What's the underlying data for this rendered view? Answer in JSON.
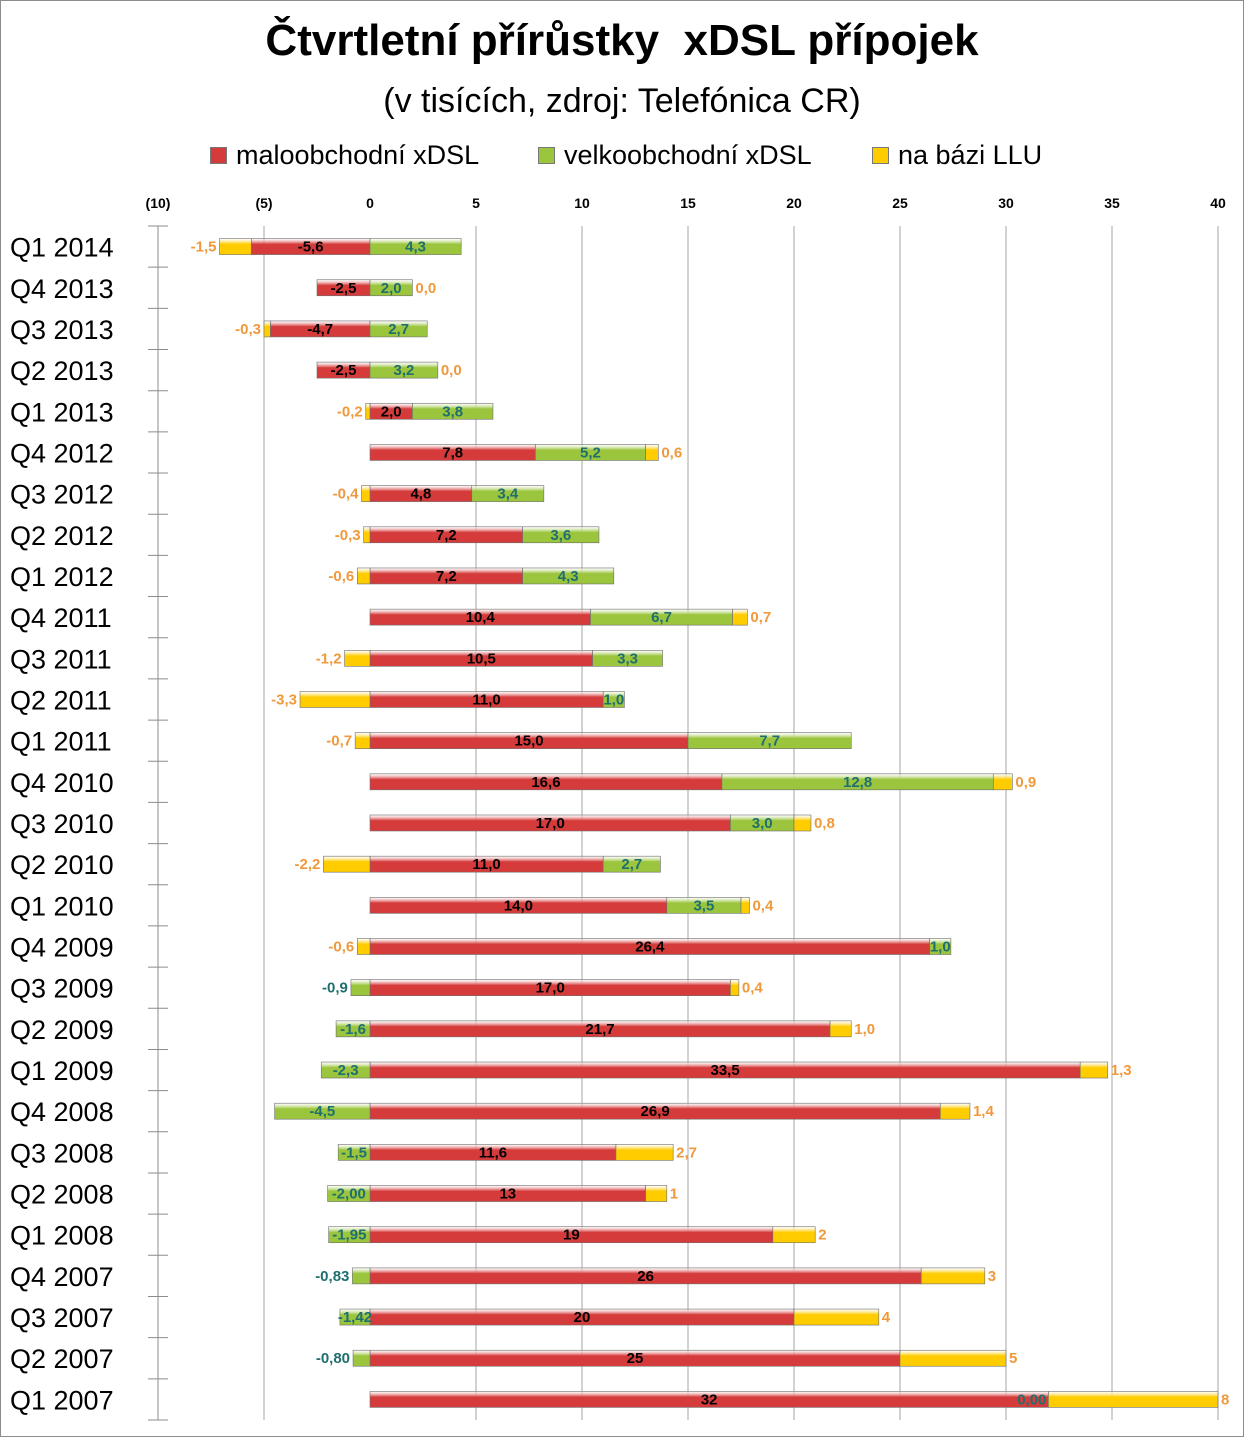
{
  "chart_data": {
    "type": "bar",
    "orientation": "horizontal",
    "stacked": true,
    "title": "Čtvrtletní přírůstky  xDSL přípojek",
    "subtitle": "(v tisících, zdroj: Telefónica CR)",
    "xlim": [
      -10,
      40
    ],
    "x_ticks": [
      {
        "value": -10,
        "label": "(10)"
      },
      {
        "value": -5,
        "label": "(5)"
      },
      {
        "value": 0,
        "label": "0"
      },
      {
        "value": 5,
        "label": "5"
      },
      {
        "value": 10,
        "label": "10"
      },
      {
        "value": 15,
        "label": "15"
      },
      {
        "value": 20,
        "label": "20"
      },
      {
        "value": 25,
        "label": "25"
      },
      {
        "value": 30,
        "label": "30"
      },
      {
        "value": 35,
        "label": "35"
      },
      {
        "value": 40,
        "label": "40"
      }
    ],
    "grid": true,
    "legend_position": "top",
    "categories": [
      "Q1 2014",
      "Q4 2013",
      "Q3 2013",
      "Q2 2013",
      "Q1 2013",
      "Q4 2012",
      "Q3 2012",
      "Q2 2012",
      "Q1 2012",
      "Q4 2011",
      "Q3 2011",
      "Q2 2011",
      "Q1 2011",
      "Q4 2010",
      "Q3 2010",
      "Q2 2010",
      "Q1 2010",
      "Q4 2009",
      "Q3 2009",
      "Q2 2009",
      "Q1 2009",
      "Q4 2008",
      "Q3 2008",
      "Q2 2008",
      "Q1 2008",
      "Q4 2007",
      "Q3 2007",
      "Q2 2007",
      "Q1 2007"
    ],
    "series": [
      {
        "name": "maloobchodní xDSL",
        "color": "#d63b3b",
        "label_color": "#000000",
        "values": [
          -5.6,
          -2.5,
          -4.7,
          -2.5,
          2.0,
          7.8,
          4.8,
          7.2,
          7.2,
          10.4,
          10.5,
          11.0,
          15.0,
          16.6,
          17.0,
          11.0,
          14.0,
          26.4,
          17.0,
          21.7,
          33.5,
          26.9,
          11.6,
          13,
          19,
          26,
          20,
          25,
          32
        ],
        "labels": [
          "-5,6",
          "-2,5",
          "-4,7",
          "-2,5",
          "2,0",
          "7,8",
          "4,8",
          "7,2",
          "7,2",
          "10,4",
          "10,5",
          "11,0",
          "15,0",
          "16,6",
          "17,0",
          "11,0",
          "14,0",
          "26,4",
          "17,0",
          "21,7",
          "33,5",
          "26,9",
          "11,6",
          "13",
          "19",
          "26",
          "20",
          "25",
          "32"
        ]
      },
      {
        "name": "velkoobchodní xDSL",
        "color": "#9bc53d",
        "label_color": "#1f6f6f",
        "values": [
          4.3,
          2.0,
          2.7,
          3.2,
          3.8,
          5.2,
          3.4,
          3.6,
          4.3,
          6.7,
          3.3,
          1.0,
          7.7,
          12.8,
          3.0,
          2.7,
          3.5,
          1.0,
          -0.9,
          -1.6,
          -2.3,
          -4.5,
          -1.5,
          -2.0,
          -1.95,
          -0.83,
          -1.42,
          -0.8,
          0.0
        ],
        "labels": [
          "4,3",
          "2,0",
          "2,7",
          "3,2",
          "3,8",
          "5,2",
          "3,4",
          "3,6",
          "4,3",
          "6,7",
          "3,3",
          "1,0",
          "7,7",
          "12,8",
          "3,0",
          "2,7",
          "3,5",
          "1,0",
          "-0,9",
          "-1,6",
          "-2,3",
          "-4,5",
          "-1,5",
          "-2,00",
          "-1,95",
          "-0,83",
          "-1,42",
          "-0,80",
          "0,00"
        ]
      },
      {
        "name": "na bázi LLU",
        "color": "#ffcc00",
        "label_color": "#f0993c",
        "values": [
          -1.5,
          0.0,
          -0.3,
          0.0,
          -0.2,
          0.6,
          -0.4,
          -0.3,
          -0.6,
          0.7,
          -1.2,
          -3.3,
          -0.7,
          0.9,
          0.8,
          -2.2,
          0.4,
          -0.6,
          0.4,
          1.0,
          1.3,
          1.4,
          2.7,
          1,
          2,
          3,
          4,
          5,
          8
        ],
        "labels": [
          "-1,5",
          "0,0",
          "-0,3",
          "0,0",
          "-0,2",
          "0,6",
          "-0,4",
          "-0,3",
          "-0,6",
          "0,7",
          "-1,2",
          "-3,3",
          "-0,7",
          "0,9",
          "0,8",
          "-2,2",
          "0,4",
          "-0,6",
          "0,4",
          "1,0",
          "1,3",
          "1,4",
          "2,7",
          "1",
          "2",
          "3",
          "4",
          "5",
          "8"
        ]
      }
    ]
  }
}
